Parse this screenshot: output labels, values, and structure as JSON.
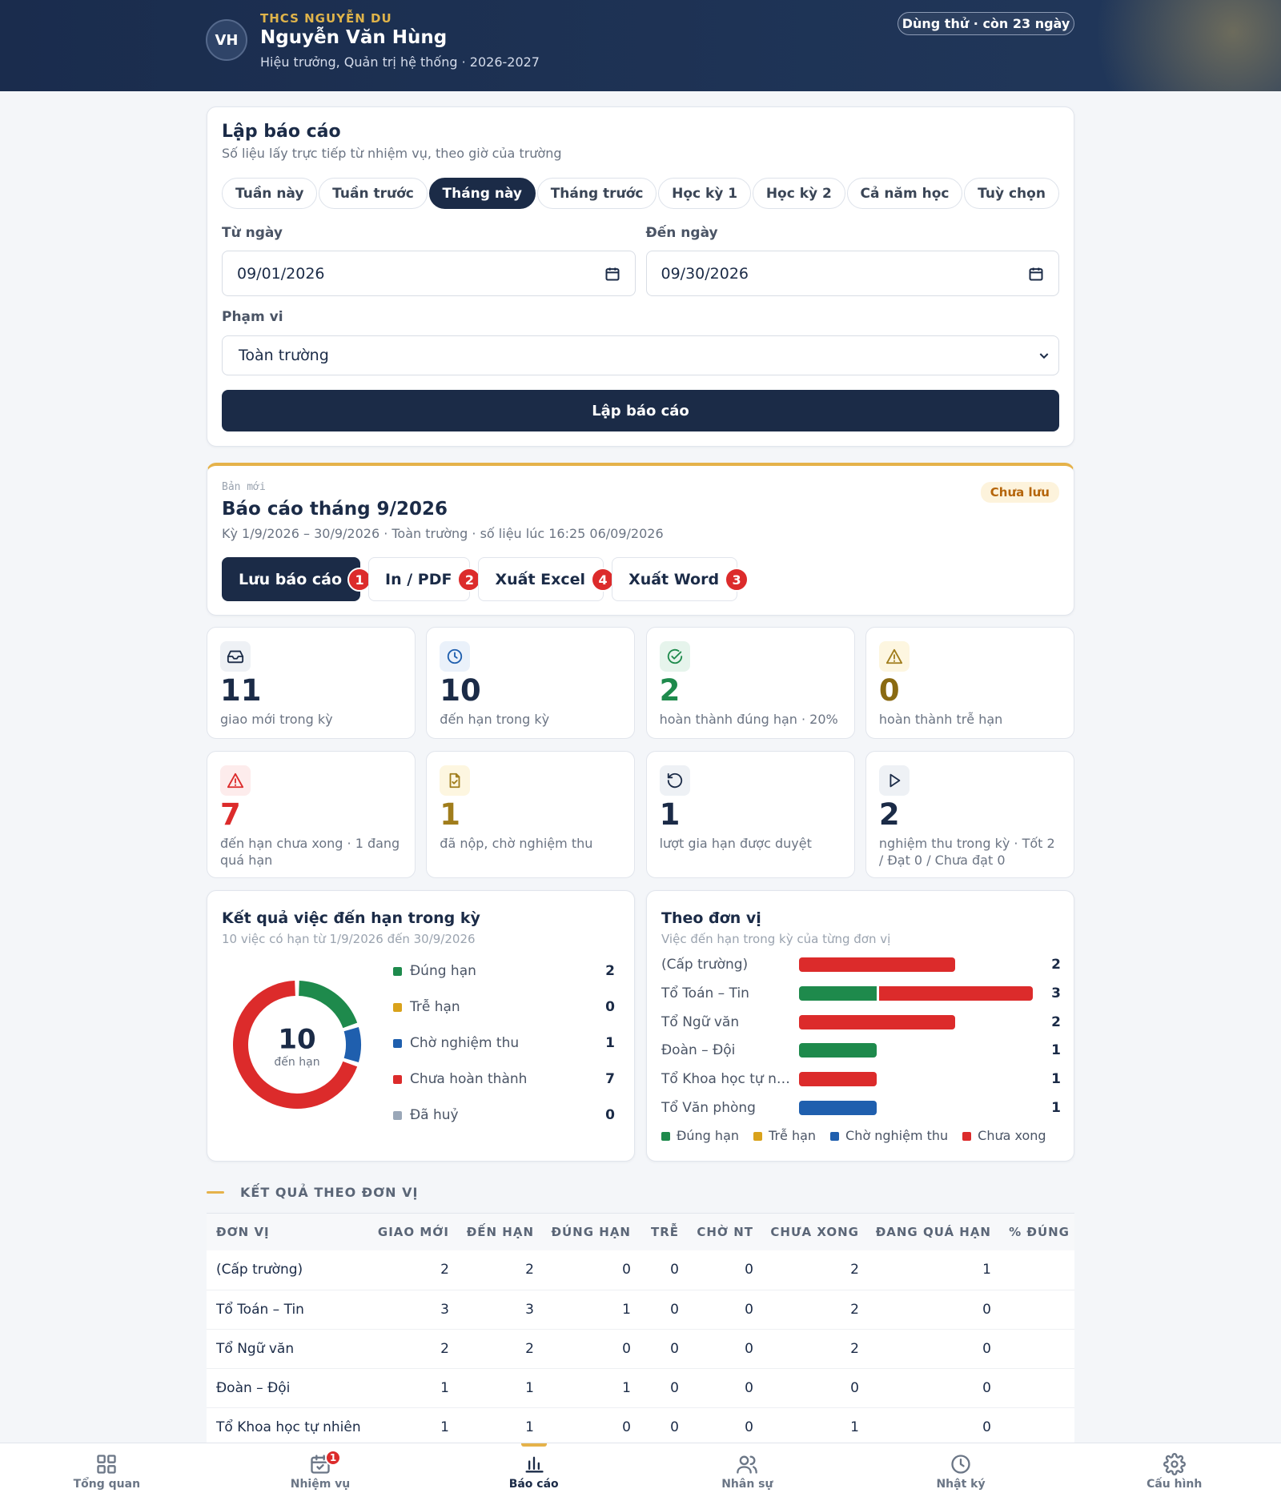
{
  "header": {
    "school": "THCS NGUYỄN DU",
    "avatar": "VH",
    "name": "Nguyễn Văn Hùng",
    "role": "Hiệu trưởng, Quản trị hệ thống · 2026-2027",
    "trial": "Dùng thử · còn 23 ngày"
  },
  "report_form": {
    "title": "Lập báo cáo",
    "subtitle": "Số liệu lấy trực tiếp từ nhiệm vụ, theo giờ của trường",
    "periods": [
      "Tuần này",
      "Tuần trước",
      "Tháng này",
      "Tháng trước",
      "Học kỳ 1",
      "Học kỳ 2",
      "Cả năm học",
      "Tuỳ chọn"
    ],
    "selected_period": 2,
    "from_label": "Từ ngày",
    "from_value": "09/01/2026",
    "to_label": "Đến ngày",
    "to_value": "09/30/2026",
    "scope_label": "Phạm vi",
    "scope_value": "Toàn trường",
    "submit": "Lập báo cáo"
  },
  "report": {
    "tag": "Bản mới",
    "title": "Báo cáo tháng 9/2026",
    "meta": "Kỳ 1/9/2026 – 30/9/2026 · Toàn trường · số liệu lúc 16:25 06/09/2026",
    "status": "Chưa lưu",
    "actions": [
      {
        "label": "Lưu báo cáo",
        "badge": 1
      },
      {
        "label": "In / PDF",
        "badge": 2
      },
      {
        "label": "Xuất Excel",
        "badge": 4
      },
      {
        "label": "Xuất Word",
        "badge": 3
      }
    ]
  },
  "stats": [
    {
      "value": 11,
      "label": "giao mới trong kỳ",
      "color": "#1b2b47"
    },
    {
      "value": 10,
      "label": "đến hạn trong kỳ",
      "color": "#1b2b47"
    },
    {
      "value": 2,
      "label": "hoàn thành đúng hạn · 20%",
      "color": "#1e8a4c"
    },
    {
      "value": 0,
      "label": "hoàn thành trễ hạn",
      "color": "#8a6a12"
    },
    {
      "value": 7,
      "label": "đến hạn chưa xong · 1 đang quá hạn",
      "color": "#dc2b2b"
    },
    {
      "value": 1,
      "label": "đã nộp, chờ nghiệm thu",
      "color": "#a07d1c"
    },
    {
      "value": 1,
      "label": "lượt gia hạn được duyệt",
      "color": "#1b2b47"
    },
    {
      "value": 2,
      "label": "nghiệm thu trong kỳ · Tốt 2 / Đạt 0 / Chưa đạt 0",
      "color": "#1b2b47"
    }
  ],
  "deadline_results": {
    "title": "Kết quả việc đến hạn trong kỳ",
    "subtitle": "10 việc có hạn từ 1/9/2026 đến 30/9/2026",
    "center_value": 10,
    "center_label": "đến hạn",
    "items": [
      {
        "name": "Đúng hạn",
        "color": "#1e8a4c",
        "value": 2
      },
      {
        "name": "Trễ hạn",
        "color": "#d9a21b",
        "value": 0
      },
      {
        "name": "Chờ nghiệm thu",
        "color": "#1f5fae",
        "value": 1
      },
      {
        "name": "Chưa hoàn thành",
        "color": "#dc2b2b",
        "value": 7
      },
      {
        "name": "Đã huỷ",
        "color": "#9aa7b8",
        "value": 0
      }
    ]
  },
  "by_unit": {
    "title": "Theo đơn vị",
    "subtitle": "Việc đến hạn trong kỳ của từng đơn vị",
    "legend": [
      {
        "name": "Đúng hạn",
        "color": "#1e8a4c"
      },
      {
        "name": "Trễ hạn",
        "color": "#d9a21b"
      },
      {
        "name": "Chờ nghiệm thu",
        "color": "#1f5fae"
      },
      {
        "name": "Chưa xong",
        "color": "#dc2b2b"
      }
    ],
    "units": [
      {
        "name": "(Cấp trường)",
        "total": 2,
        "segments": [
          0,
          0,
          0,
          2
        ]
      },
      {
        "name": "Tổ Toán – Tin",
        "total": 3,
        "segments": [
          1,
          0,
          0,
          2
        ]
      },
      {
        "name": "Tổ Ngữ văn",
        "total": 2,
        "segments": [
          0,
          0,
          0,
          2
        ]
      },
      {
        "name": "Đoàn – Đội",
        "total": 1,
        "segments": [
          1,
          0,
          0,
          0
        ]
      },
      {
        "name": "Tổ Khoa học tự nhiên",
        "total": 1,
        "segments": [
          0,
          0,
          0,
          1
        ]
      },
      {
        "name": "Tổ Văn phòng",
        "total": 1,
        "segments": [
          0,
          0,
          1,
          0
        ]
      }
    ]
  },
  "table": {
    "title": "KẾT QUẢ THEO ĐƠN VỊ",
    "columns": [
      "ĐƠN VỊ",
      "GIAO MỚI",
      "ĐẾN HẠN",
      "ĐÚNG HẠN",
      "TRỄ",
      "CHỜ NT",
      "CHƯA XONG",
      "ĐANG QUÁ HẠN",
      "% ĐÚNG"
    ],
    "rows": [
      [
        "(Cấp trường)",
        2,
        2,
        0,
        0,
        0,
        2,
        1
      ],
      [
        "Tổ Toán – Tin",
        3,
        3,
        1,
        0,
        0,
        2,
        0
      ],
      [
        "Tổ Ngữ văn",
        2,
        2,
        0,
        0,
        0,
        2,
        0
      ],
      [
        "Đoàn – Đội",
        1,
        1,
        1,
        0,
        0,
        0,
        0
      ],
      [
        "Tổ Khoa học tự nhiên",
        1,
        1,
        0,
        0,
        0,
        1,
        0
      ]
    ]
  },
  "nav": {
    "items": [
      {
        "label": "Tổng quan"
      },
      {
        "label": "Nhiệm vụ",
        "badge": 1
      },
      {
        "label": "Báo cáo"
      },
      {
        "label": "Nhân sự"
      },
      {
        "label": "Nhật ký"
      },
      {
        "label": "Cấu hình"
      }
    ],
    "active": 2
  }
}
